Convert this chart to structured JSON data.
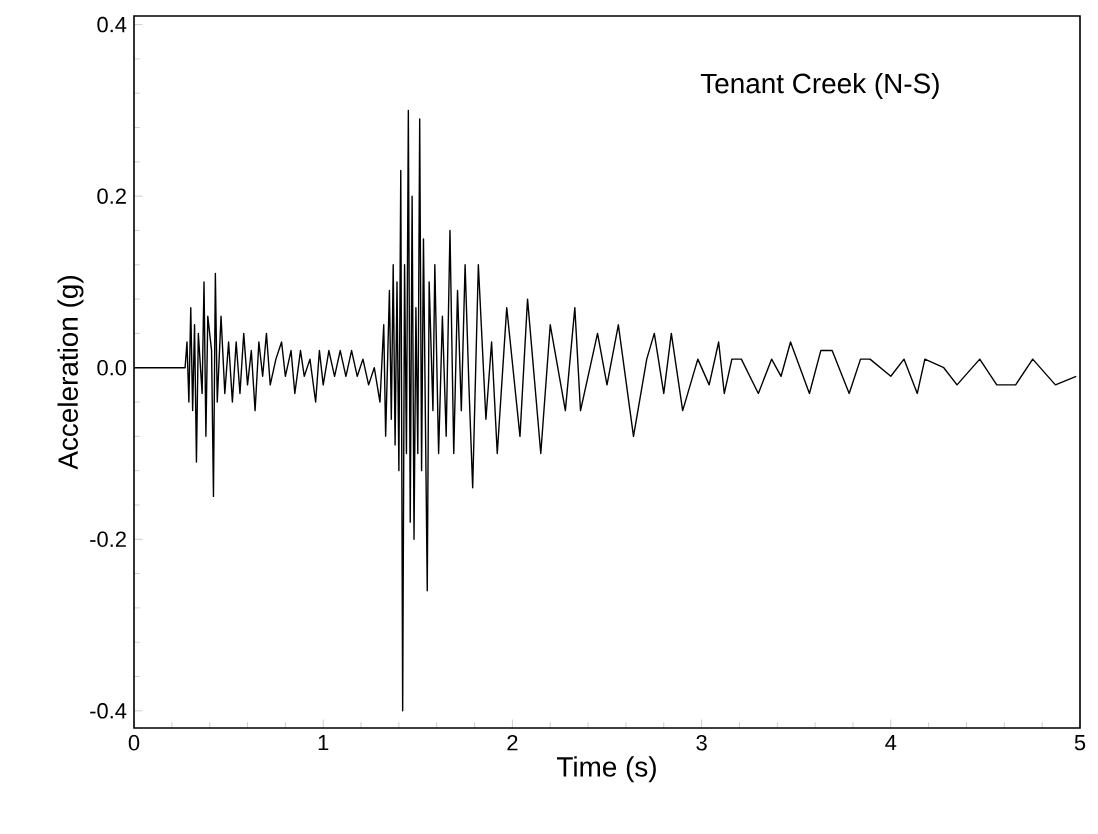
{
  "chart_data": {
    "type": "line",
    "xlabel": "Time (s)",
    "ylabel": "Acceleration (g)",
    "annotations": [
      "Tenant Creek (N-S)"
    ],
    "xlim": [
      0,
      5
    ],
    "ylim": [
      -0.42,
      0.41
    ],
    "xticks": [
      0,
      1,
      2,
      3,
      4,
      5
    ],
    "yticks": [
      {
        "value": -0.4,
        "label": "-0.4"
      },
      {
        "value": -0.2,
        "label": "-0.2"
      },
      {
        "value": 0,
        "label": "0.0"
      },
      {
        "value": 0.2,
        "label": "0.2"
      },
      {
        "value": 0.4,
        "label": "0.4"
      }
    ],
    "x": [
      0,
      0.27,
      0.28,
      0.29,
      0.3,
      0.31,
      0.32,
      0.33,
      0.34,
      0.36,
      0.37,
      0.38,
      0.39,
      0.41,
      0.42,
      0.43,
      0.44,
      0.46,
      0.48,
      0.5,
      0.52,
      0.54,
      0.56,
      0.58,
      0.6,
      0.62,
      0.64,
      0.66,
      0.68,
      0.7,
      0.72,
      0.75,
      0.78,
      0.8,
      0.83,
      0.85,
      0.88,
      0.9,
      0.93,
      0.96,
      0.98,
      1.0,
      1.03,
      1.06,
      1.09,
      1.12,
      1.15,
      1.18,
      1.21,
      1.24,
      1.27,
      1.3,
      1.32,
      1.33,
      1.35,
      1.36,
      1.37,
      1.38,
      1.39,
      1.4,
      1.41,
      1.42,
      1.43,
      1.44,
      1.45,
      1.46,
      1.47,
      1.48,
      1.49,
      1.5,
      1.51,
      1.52,
      1.53,
      1.55,
      1.56,
      1.58,
      1.59,
      1.61,
      1.63,
      1.65,
      1.67,
      1.69,
      1.71,
      1.73,
      1.75,
      1.77,
      1.79,
      1.82,
      1.86,
      1.89,
      1.92,
      1.97,
      2.04,
      2.08,
      2.15,
      2.2,
      2.28,
      2.33,
      2.36,
      2.45,
      2.5,
      2.56,
      2.64,
      2.71,
      2.75,
      2.8,
      2.84,
      2.9,
      2.98,
      3.04,
      3.09,
      3.12,
      3.16,
      3.21,
      3.3,
      3.37,
      3.42,
      3.47,
      3.57,
      3.63,
      3.69,
      3.78,
      3.84,
      3.89,
      4.0,
      4.07,
      4.14,
      4.18,
      4.28,
      4.35,
      4.47,
      4.56,
      4.66,
      4.75,
      4.87,
      4.98
    ],
    "series": [
      {
        "color": "#000000",
        "values": [
          0,
          0,
          0.03,
          -0.04,
          0.07,
          -0.05,
          0.05,
          -0.11,
          0.04,
          -0.03,
          0.1,
          -0.08,
          0.06,
          0.02,
          -0.15,
          0.11,
          -0.04,
          0.06,
          -0.03,
          0.03,
          -0.04,
          0.03,
          -0.03,
          0.04,
          -0.02,
          0.02,
          -0.05,
          0.03,
          -0.01,
          0.04,
          -0.02,
          0.01,
          0.03,
          -0.01,
          0.02,
          -0.03,
          0.02,
          -0.01,
          0.01,
          -0.04,
          0.02,
          -0.02,
          0.02,
          -0.01,
          0.02,
          -0.01,
          0.02,
          -0.01,
          0.01,
          -0.02,
          0,
          -0.04,
          0.05,
          -0.08,
          0.09,
          -0.06,
          0.12,
          -0.09,
          0.1,
          -0.12,
          0.23,
          -0.4,
          0.12,
          -0.1,
          0.3,
          -0.18,
          0.2,
          -0.2,
          0.07,
          -0.1,
          0.29,
          -0.12,
          0.15,
          -0.26,
          0.1,
          -0.05,
          0.12,
          -0.1,
          0.06,
          -0.08,
          0.16,
          -0.1,
          0.09,
          -0.05,
          0.12,
          -0.02,
          -0.14,
          0.12,
          -0.06,
          0.03,
          -0.1,
          0.07,
          -0.08,
          0.08,
          -0.1,
          0.05,
          -0.05,
          0.07,
          -0.05,
          0.04,
          -0.02,
          0.05,
          -0.08,
          0.01,
          0.04,
          -0.03,
          0.04,
          -0.05,
          0.01,
          -0.02,
          0.03,
          -0.03,
          0.01,
          0.01,
          -0.03,
          0.01,
          -0.01,
          0.03,
          -0.03,
          0.02,
          0.02,
          -0.03,
          0.01,
          0.01,
          -0.01,
          0.01,
          -0.03,
          0.01,
          0,
          -0.02,
          0.01,
          -0.02,
          -0.02,
          0.01,
          -0.02,
          -0.01
        ]
      }
    ]
  }
}
